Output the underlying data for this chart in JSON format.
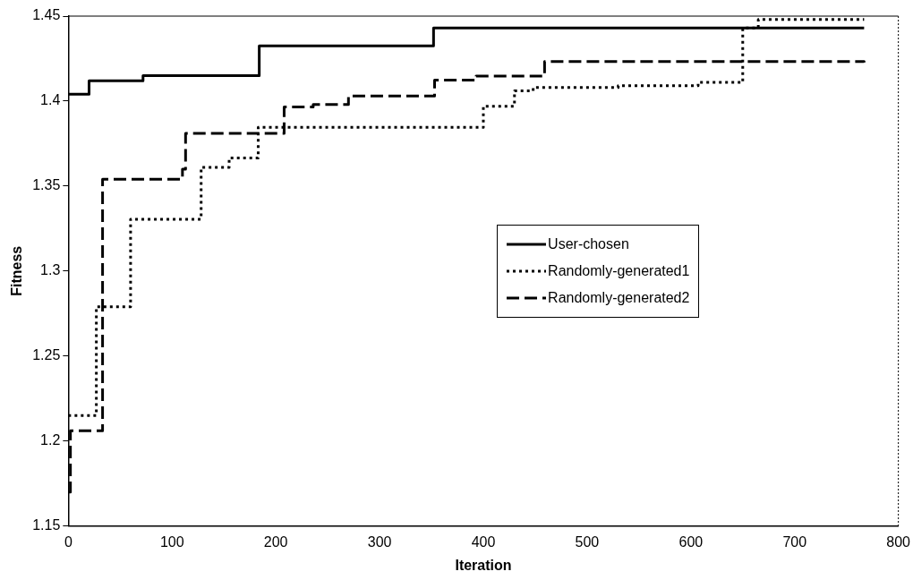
{
  "chart_data": {
    "type": "step",
    "xlabel": "Iteration",
    "ylabel": "Fitness",
    "xlim": [
      0,
      800
    ],
    "xticks": [
      0,
      100,
      200,
      300,
      400,
      500,
      600,
      700,
      800
    ],
    "ylim": [
      1.15,
      1.45
    ],
    "yticks": [
      1.15,
      1.2,
      1.25,
      1.3,
      1.35,
      1.4,
      1.45
    ],
    "grid": false,
    "legend": "center right",
    "marker": "none",
    "series": [
      {
        "name": "User-chosen",
        "color": "#000000",
        "line_style": "solid",
        "x": [
          0,
          20,
          72,
          184,
          352,
          767
        ],
        "values": [
          1.404,
          1.412,
          1.415,
          1.4325,
          1.443,
          1.443
        ]
      },
      {
        "name": "Randomly-generated1",
        "color": "#000000",
        "line_style": "dotted",
        "x": [
          0,
          27,
          60,
          128,
          155,
          183,
          400,
          430,
          448,
          530,
          607,
          650,
          665,
          767
        ],
        "values": [
          1.215,
          1.279,
          1.3305,
          1.361,
          1.3665,
          1.3845,
          1.397,
          1.406,
          1.408,
          1.409,
          1.411,
          1.443,
          1.448,
          1.448
        ]
      },
      {
        "name": "Randomly-generated2",
        "color": "#000000",
        "line_style": "dashed",
        "x": [
          0,
          2,
          33,
          110,
          113,
          208,
          236,
          270,
          353,
          393,
          459,
          767
        ],
        "values": [
          1.17,
          1.206,
          1.354,
          1.36,
          1.381,
          1.3965,
          1.398,
          1.403,
          1.4124,
          1.4147,
          1.4233,
          1.4227
        ]
      }
    ]
  }
}
